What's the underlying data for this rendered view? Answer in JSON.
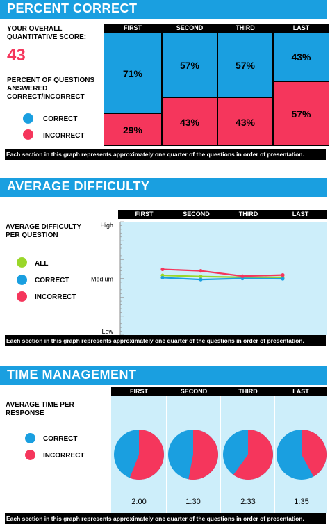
{
  "colors": {
    "correct": "#1a9fe0",
    "incorrect": "#f5365c",
    "all": "#9ad72a",
    "banner": "#1a9fe0",
    "panel": "#cdeefa"
  },
  "percent_section": {
    "title": "PERCENT CORRECT",
    "score_label": "YOUR OVERALL QUANTITATIVE SCORE:",
    "score_value": "43",
    "questions_label": "PERCENT OF QUESTIONS ANSWERED CORRECT/INCORRECT",
    "legend_correct": "CORRECT",
    "legend_incorrect": "INCORRECT",
    "footnote": "Each section in this graph represents approximately one quarter of the questions in order of presentation."
  },
  "difficulty_section": {
    "title": "AVERAGE DIFFICULTY",
    "label": "AVERAGE DIFFICULTY PER QUESTION",
    "legend_all": "ALL",
    "legend_correct": "CORRECT",
    "legend_incorrect": "INCORRECT",
    "footnote": "Each section in this graph represents approximately one quarter of the questions in order of presentation."
  },
  "time_section": {
    "title": "TIME MANAGEMENT",
    "label": "AVERAGE TIME PER RESPONSE",
    "legend_correct": "CORRECT",
    "legend_incorrect": "INCORRECT",
    "footnote": "Each section in this graph represents approximately one quarter of the questions in order of presentation."
  },
  "chart_data": [
    {
      "type": "bar",
      "stacked": true,
      "categories": [
        "FIRST",
        "SECOND",
        "THIRD",
        "LAST"
      ],
      "series": [
        {
          "name": "CORRECT",
          "values": [
            71,
            57,
            57,
            43
          ],
          "labels": [
            "71%",
            "57%",
            "57%",
            "43%"
          ]
        },
        {
          "name": "INCORRECT",
          "values": [
            29,
            43,
            43,
            57
          ],
          "labels": [
            "29%",
            "43%",
            "43%",
            "57%"
          ]
        }
      ],
      "ylim": [
        0,
        100
      ]
    },
    {
      "type": "line",
      "categories": [
        "FIRST",
        "SECOND",
        "THIRD",
        "LAST"
      ],
      "ytick_labels": [
        "High",
        "Medium",
        "Low"
      ],
      "series": [
        {
          "name": "ALL",
          "values": [
            1.58,
            1.55,
            1.53,
            1.53
          ]
        },
        {
          "name": "CORRECT",
          "values": [
            1.52,
            1.47,
            1.5,
            1.49
          ]
        },
        {
          "name": "INCORRECT",
          "values": [
            1.74,
            1.7,
            1.56,
            1.59
          ]
        }
      ],
      "ylim": [
        0,
        3
      ]
    },
    {
      "type": "pie",
      "categories": [
        "FIRST",
        "SECOND",
        "THIRD",
        "LAST"
      ],
      "time_labels": [
        "2:00",
        "1:30",
        "2:33",
        "1:35"
      ],
      "series": [
        {
          "name": "CORRECT",
          "values": [
            44,
            47,
            40,
            58
          ]
        },
        {
          "name": "INCORRECT",
          "values": [
            56,
            53,
            60,
            42
          ]
        }
      ]
    }
  ]
}
